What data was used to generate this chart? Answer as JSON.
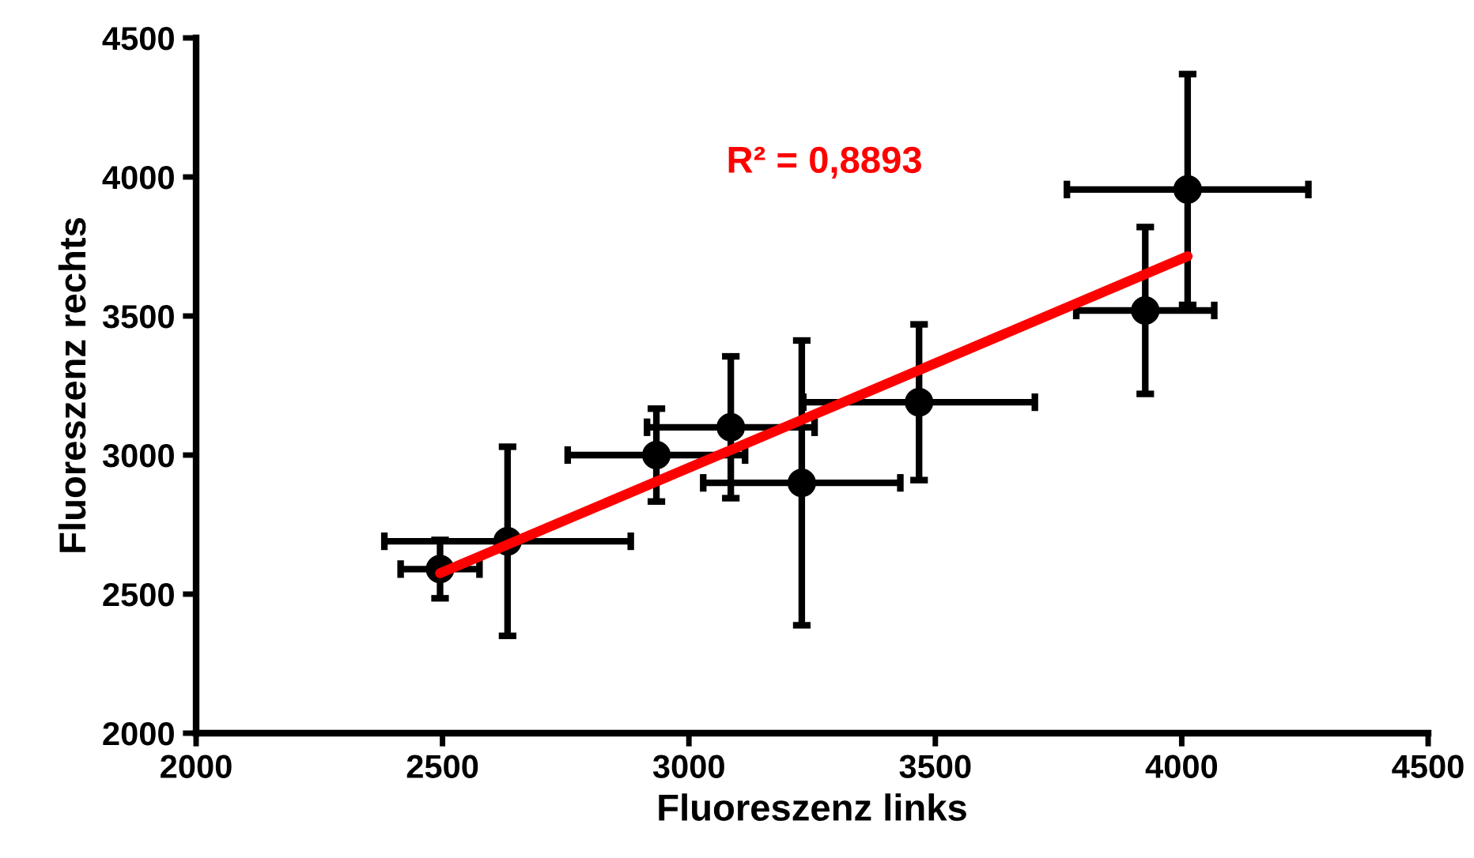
{
  "chart_data": {
    "type": "scatter",
    "xlabel": "Fluoreszenz links",
    "ylabel": "Fluoreszenz rechts",
    "annotations": [
      "R² = 0,8893"
    ],
    "xlim": [
      2000,
      4500
    ],
    "xticks": [
      2000,
      2500,
      3000,
      3500,
      4000,
      4500
    ],
    "ylim": [
      2000,
      4500
    ],
    "yticks": [
      2000,
      2500,
      3000,
      3500,
      4000,
      4500
    ],
    "grid": false,
    "legend": false,
    "marker": "circle",
    "series": [
      {
        "color": "#000000",
        "x": [
          2495,
          2632,
          2934,
          3085,
          3229,
          3467,
          4012,
          3926
        ],
        "values": [
          2590,
          2690,
          3000,
          3100,
          2900,
          3190,
          3955,
          3520
        ],
        "errors": [
          105,
          340,
          167,
          255,
          512,
          280,
          415,
          300
        ],
        "xerrors": [
          80,
          250,
          180,
          170,
          200,
          235,
          245,
          140
        ]
      },
      {
        "type": "line",
        "color": "#ff0000",
        "x": [
          2495,
          4012
        ],
        "values": [
          2575,
          3715
        ],
        "marker": "none",
        "line_style": "solid"
      }
    ]
  }
}
